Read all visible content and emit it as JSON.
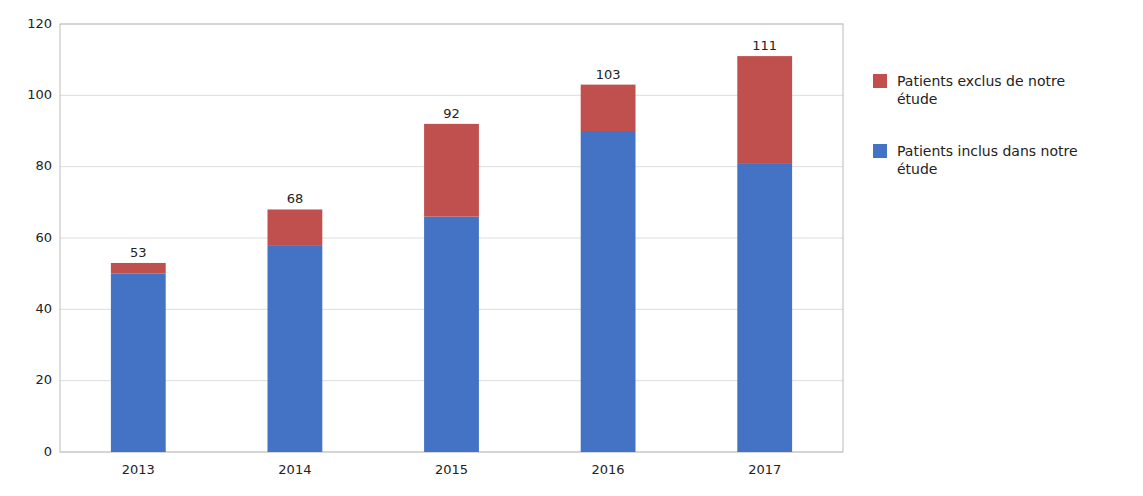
{
  "chart_data": {
    "type": "bar",
    "stacked": true,
    "categories": [
      "2013",
      "2014",
      "2015",
      "2016",
      "2017"
    ],
    "series": [
      {
        "name": "Patients inclus dans notre\nétude",
        "color": "#4472C4",
        "values": [
          50,
          58,
          66,
          90,
          81
        ]
      },
      {
        "name": "Patients exclus de notre\nétude",
        "color": "#C0504D",
        "values": [
          3,
          10,
          26,
          13,
          30
        ]
      }
    ],
    "totals": [
      53,
      68,
      92,
      103,
      111
    ],
    "ylim": [
      0,
      120
    ],
    "yticks": [
      0,
      20,
      40,
      60,
      80,
      100,
      120
    ],
    "grid": true,
    "legend": "right"
  }
}
